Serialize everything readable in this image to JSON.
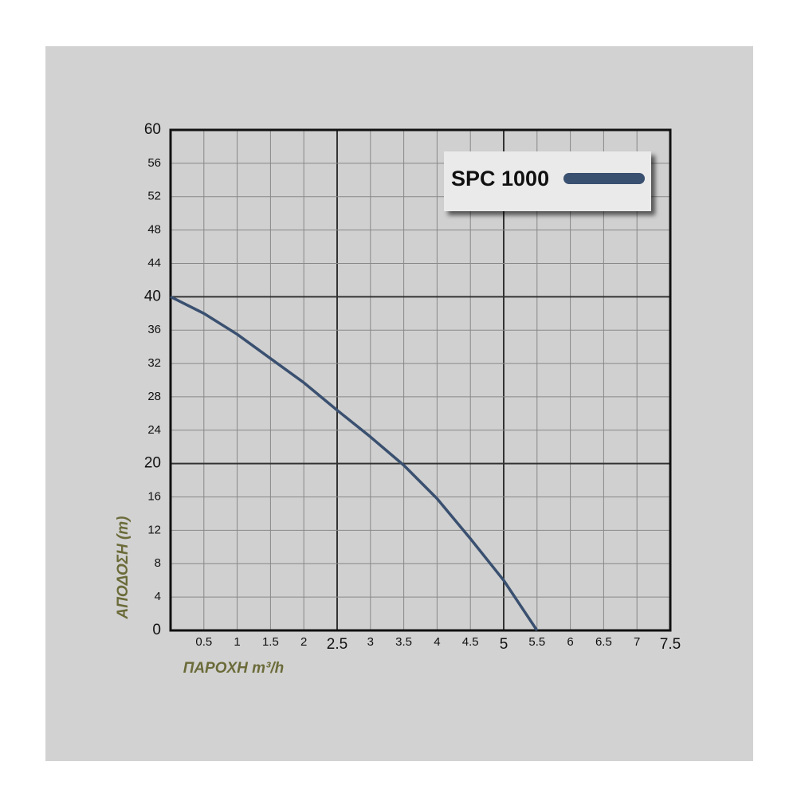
{
  "chart_data": {
    "type": "line",
    "x_label": "ΠΑΡΟΧΗ m³/h",
    "y_label": "ΑΠΟΔΟΣΗ (m)",
    "x": [
      0,
      0.5,
      1,
      1.5,
      2,
      2.5,
      3,
      3.5,
      4,
      4.5,
      5,
      5.5
    ],
    "series": [
      {
        "name": "SPC 1000",
        "color": "#3a5070",
        "values": [
          40,
          38,
          35.5,
          32.6,
          29.7,
          26.4,
          23.2,
          19.8,
          15.8,
          11,
          6,
          0
        ]
      }
    ],
    "xlim": [
      0,
      7.5
    ],
    "xticks": [
      0.5,
      1,
      1.5,
      2,
      2.5,
      3,
      3.5,
      4,
      4.5,
      5,
      5.5,
      6,
      6.5,
      7,
      7.5
    ],
    "ylim": [
      0,
      60
    ],
    "yticks": [
      0,
      4,
      8,
      12,
      16,
      20,
      24,
      28,
      32,
      36,
      40,
      44,
      48,
      52,
      56,
      60
    ],
    "grid": true,
    "legend": "upper right"
  }
}
